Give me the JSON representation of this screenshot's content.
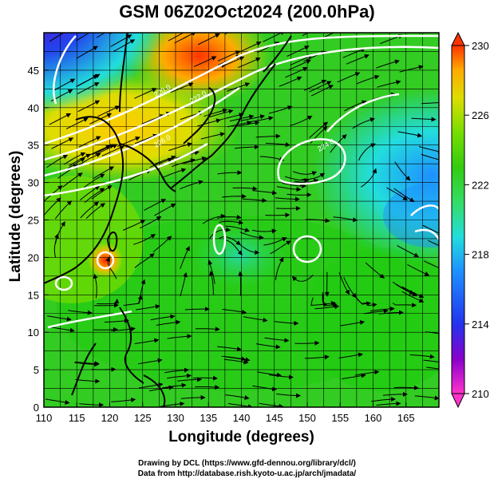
{
  "title": "GSM 06Z02Oct2024 (200.0hPa)",
  "axes": {
    "xlabel": "Longitude (degrees)",
    "ylabel": "Latitude  (degrees)",
    "xticks": [
      "110",
      "115",
      "120",
      "125",
      "130",
      "135",
      "140",
      "145",
      "150",
      "155",
      "160",
      "165"
    ],
    "yticks": [
      "0",
      "5",
      "10",
      "15",
      "20",
      "25",
      "30",
      "35",
      "40",
      "45"
    ],
    "xlim": [
      110,
      170
    ],
    "ylim": [
      0,
      50
    ]
  },
  "colorbar": {
    "ticks": [
      "230",
      "226",
      "222",
      "218",
      "214",
      "210"
    ],
    "range": [
      210,
      230
    ],
    "colors": [
      "#ff33cc",
      "#8800cc",
      "#2233ee",
      "#1e90ff",
      "#22dddd",
      "#33dd66",
      "#33cc11",
      "#77dd00",
      "#dddd00",
      "#ffaa00",
      "#ff3300"
    ]
  },
  "map": {
    "background": "#33cc22",
    "grid": true,
    "contour_labels": [
      "220.0",
      "222.0",
      "224.0",
      "226.0"
    ]
  },
  "footer": {
    "line1": "Drawing by DCL (https://www.gfd-dennou.org/library/dcl/)",
    "line2": "Data from http://database.rish.kyoto-u.ac.jp/arch/jmadata/"
  }
}
